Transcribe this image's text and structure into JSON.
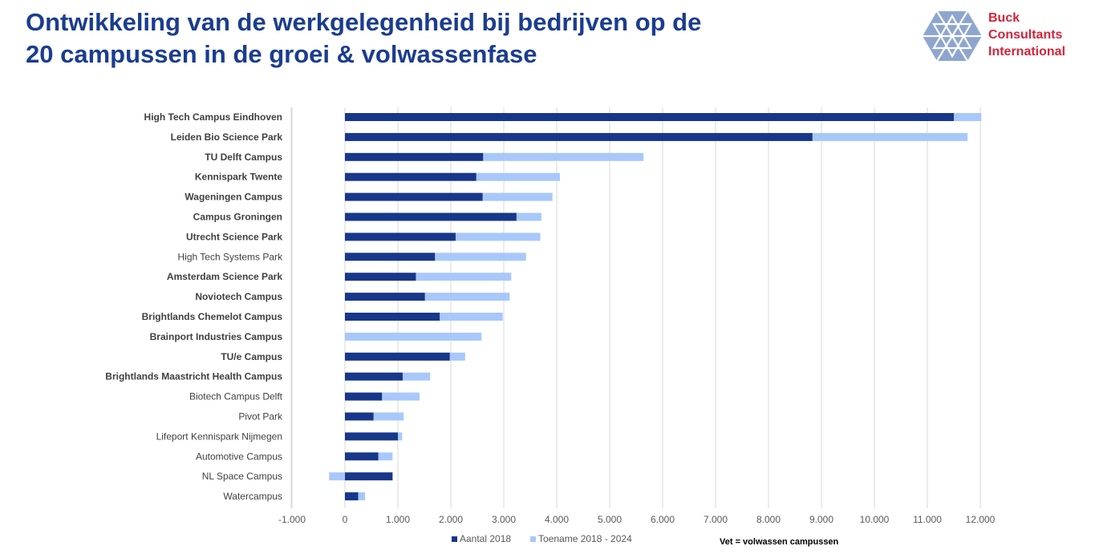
{
  "title_line1": "Ontwikkeling van de werkgelegenheid bij bedrijven op de",
  "title_line2": "20 campussen in de groei & volwassenfase",
  "logo": {
    "line1": "Buck",
    "line2": "Consultants",
    "line3": "International"
  },
  "footnote": "Vet = volwassen campussen",
  "colors": {
    "dark": "#17378a",
    "light": "#a8c8fb",
    "title": "#1b3d8f",
    "brand_red": "#d5243a",
    "grid": "#d9d9d9"
  },
  "chart_data": {
    "type": "bar",
    "orientation": "horizontal",
    "stacked": true,
    "title": "",
    "xlabel": "",
    "ylabel": "",
    "xlim": [
      -1000,
      12000
    ],
    "x_ticks": [
      -1000,
      0,
      1000,
      2000,
      3000,
      4000,
      5000,
      6000,
      7000,
      8000,
      9000,
      10000,
      11000,
      12000
    ],
    "x_tick_labels": [
      "-1.000",
      "0",
      "1.000",
      "2.000",
      "3.000",
      "4.000",
      "5.000",
      "6.000",
      "7.000",
      "8.000",
      "9.000",
      "10.000",
      "11.000",
      "12.000"
    ],
    "grid": true,
    "legend": "bottom-center",
    "categories": [
      "High Tech Campus Eindhoven",
      "Leiden Bio Science Park",
      "TU Delft Campus",
      "Kennispark Twente",
      "Wageningen Campus",
      "Campus Groningen",
      "Utrecht Science Park",
      "High Tech Systems Park",
      "Amsterdam Science Park",
      "Noviotech Campus",
      "Brightlands Chemelot Campus",
      "Brainport Industries Campus",
      "TU/e Campus",
      "Brightlands Maastricht Health Campus",
      "Biotech Campus Delft",
      "Pivot Park",
      "Lifeport Kennispark Nijmegen",
      "Automotive Campus",
      "NL Space Campus",
      "Watercampus"
    ],
    "bold": [
      true,
      true,
      true,
      true,
      true,
      true,
      true,
      false,
      true,
      true,
      true,
      true,
      true,
      true,
      false,
      false,
      false,
      false,
      false,
      false
    ],
    "series": [
      {
        "name": "Aantal 2018",
        "values": [
          11500,
          8830,
          2610,
          2480,
          2600,
          3240,
          2090,
          1700,
          1340,
          1510,
          1790,
          0,
          1980,
          1090,
          700,
          540,
          1000,
          630,
          900,
          250
        ]
      },
      {
        "name": "Toename 2018 - 2024",
        "values": [
          520,
          2930,
          3030,
          1580,
          1320,
          470,
          1600,
          1720,
          1800,
          1600,
          1190,
          2580,
          290,
          520,
          710,
          570,
          80,
          270,
          -300,
          130
        ]
      }
    ]
  }
}
